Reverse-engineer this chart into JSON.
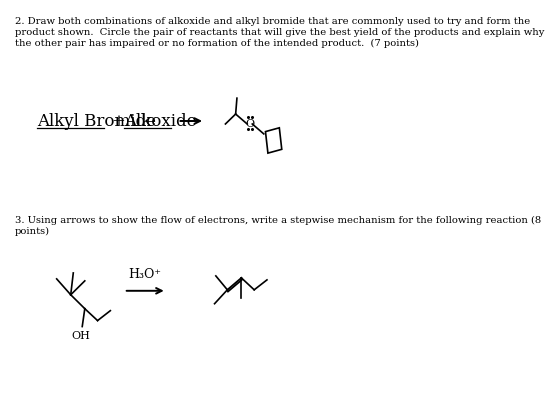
{
  "bg_color": "#ffffff",
  "text_q2_line1": "2. Draw both combinations of alkoxide and alkyl bromide that are commonly used to try and form the",
  "text_q2_line2": "product shown.  Circle the pair of reactants that will give the best yield of the products and explain why",
  "text_q2_line3": "the other pair has impaired or no formation of the intended product.  (7 points)",
  "text_q3_line1": "3. Using arrows to show the flow of electrons, write a stepwise mechanism for the following reaction (8",
  "text_q3_line2": "points)",
  "label_alkyl": "Alkyl Bromide",
  "label_plus": "+",
  "label_alkoxide": "Alkoxide",
  "label_h3o": "H₃O⁺",
  "label_oh": "OH"
}
